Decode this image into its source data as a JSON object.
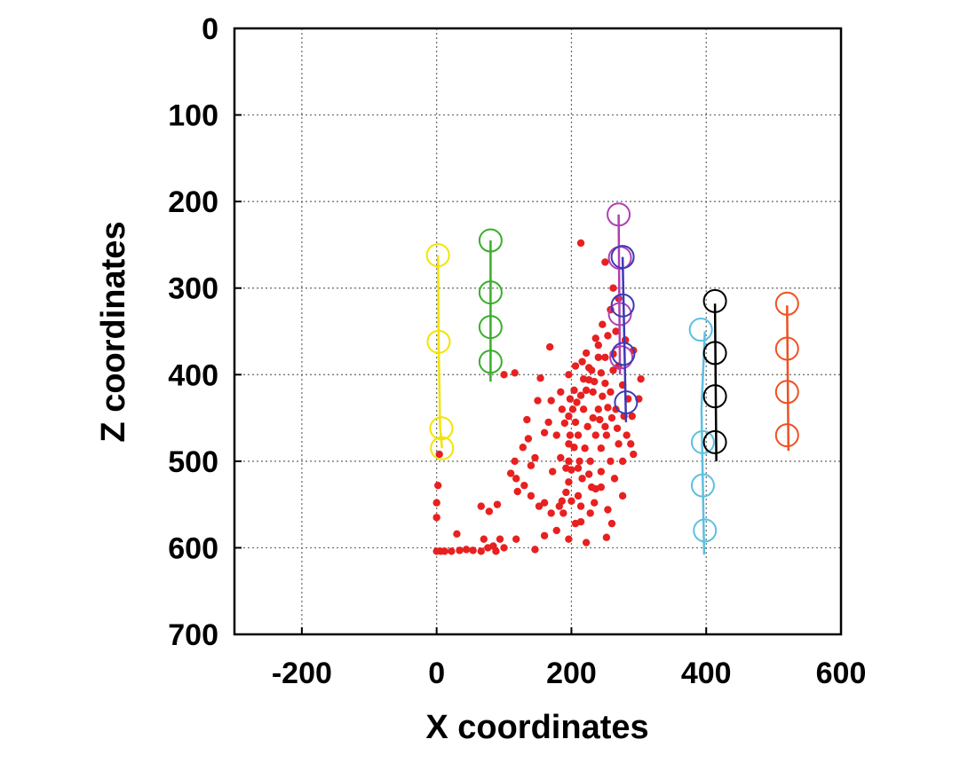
{
  "chart_data": {
    "type": "scatter",
    "xlabel": "X coordinates",
    "ylabel": "Z coordinates",
    "xlim": [
      -300,
      600
    ],
    "ylim": [
      0,
      700
    ],
    "y_inverted": true,
    "grid": true,
    "x_ticks": [
      -200,
      0,
      200,
      400,
      600
    ],
    "y_ticks": [
      0,
      100,
      200,
      300,
      400,
      500,
      600,
      700
    ],
    "x_tick_labels": [
      "-200",
      "0",
      "200",
      "400",
      "600"
    ],
    "y_tick_labels": [
      "0",
      "100",
      "200",
      "300",
      "400",
      "500",
      "600",
      "700"
    ],
    "wells": [
      {
        "color": "#f2e400",
        "trace": [
          [
            2,
            262
          ],
          [
            3,
            362
          ],
          [
            5,
            460
          ],
          [
            8,
            485
          ]
        ],
        "receivers": [
          [
            2,
            262
          ],
          [
            3,
            362
          ],
          [
            7,
            462
          ],
          [
            8,
            485
          ]
        ]
      },
      {
        "color": "#3aae2a",
        "trace": [
          [
            80,
            245
          ],
          [
            80,
            408
          ]
        ],
        "receivers": [
          [
            80,
            245
          ],
          [
            80,
            305
          ],
          [
            80,
            345
          ],
          [
            80,
            385
          ]
        ]
      },
      {
        "color": "#b040b0",
        "trace": [
          [
            270,
            215
          ],
          [
            272,
            400
          ]
        ],
        "receivers": [
          [
            270,
            215
          ],
          [
            272,
            265
          ],
          [
            272,
            330
          ],
          [
            274,
            380
          ]
        ]
      },
      {
        "color": "#3a3ab8",
        "trace": [
          [
            276,
            264
          ],
          [
            281,
            455
          ]
        ],
        "receivers": [
          [
            276,
            264
          ],
          [
            276,
            320
          ],
          [
            277,
            376
          ],
          [
            281,
            432
          ]
        ]
      },
      {
        "color": "#5cc0e0",
        "trace": [
          [
            398,
            350
          ],
          [
            393,
            440
          ],
          [
            397,
            608
          ]
        ],
        "receivers": [
          [
            392,
            348
          ],
          [
            395,
            478
          ],
          [
            395,
            528
          ],
          [
            398,
            580
          ]
        ]
      },
      {
        "color": "#000000",
        "trace": [
          [
            413,
            318
          ],
          [
            415,
            500
          ]
        ],
        "receivers": [
          [
            413,
            315
          ],
          [
            413,
            375
          ],
          [
            413,
            425
          ],
          [
            413,
            478
          ]
        ]
      },
      {
        "color": "#f05020",
        "trace": [
          [
            520,
            320
          ],
          [
            522,
            488
          ]
        ],
        "receivers": [
          [
            520,
            318
          ],
          [
            520,
            370
          ],
          [
            520,
            420
          ],
          [
            520,
            470
          ]
        ]
      }
    ],
    "events": {
      "color": "#e82020",
      "points": [
        [
          214,
          248
        ],
        [
          250,
          270
        ],
        [
          262,
          300
        ],
        [
          270,
          312
        ],
        [
          258,
          325
        ],
        [
          246,
          342
        ],
        [
          236,
          358
        ],
        [
          254,
          355
        ],
        [
          266,
          350
        ],
        [
          280,
          360
        ],
        [
          292,
          372
        ],
        [
          303,
          405
        ],
        [
          300,
          428
        ],
        [
          290,
          448
        ],
        [
          278,
          448
        ],
        [
          262,
          376
        ],
        [
          270,
          390
        ],
        [
          240,
          380
        ],
        [
          230,
          395
        ],
        [
          226,
          406
        ],
        [
          222,
          418
        ],
        [
          214,
          424
        ],
        [
          208,
          432
        ],
        [
          202,
          440
        ],
        [
          196,
          448
        ],
        [
          190,
          456
        ],
        [
          198,
          470
        ],
        [
          204,
          484
        ],
        [
          196,
          500
        ],
        [
          200,
          510
        ],
        [
          196,
          524
        ],
        [
          192,
          536
        ],
        [
          186,
          546
        ],
        [
          182,
          552
        ],
        [
          170,
          560
        ],
        [
          160,
          548
        ],
        [
          152,
          552
        ],
        [
          140,
          540
        ],
        [
          130,
          528
        ],
        [
          118,
          520
        ],
        [
          110,
          514
        ],
        [
          116,
          500
        ],
        [
          128,
          484
        ],
        [
          136,
          474
        ],
        [
          160,
          467
        ],
        [
          166,
          455
        ],
        [
          170,
          430
        ],
        [
          184,
          420
        ],
        [
          196,
          400
        ],
        [
          206,
          390
        ],
        [
          216,
          385
        ],
        [
          222,
          375
        ],
        [
          168,
          368
        ],
        [
          154,
          404
        ],
        [
          116,
          398
        ],
        [
          100,
          400
        ],
        [
          150,
          430
        ],
        [
          140,
          505
        ],
        [
          120,
          535
        ],
        [
          90,
          550
        ],
        [
          66,
          552
        ],
        [
          78,
          558
        ],
        [
          70,
          590
        ],
        [
          94,
          590
        ],
        [
          100,
          600
        ],
        [
          88,
          604
        ],
        [
          84,
          598
        ],
        [
          76,
          600
        ],
        [
          66,
          604
        ],
        [
          54,
          603
        ],
        [
          44,
          602
        ],
        [
          34,
          603
        ],
        [
          22,
          604
        ],
        [
          12,
          604
        ],
        [
          6,
          604
        ],
        [
          0,
          604
        ],
        [
          0,
          565
        ],
        [
          0,
          548
        ],
        [
          2,
          528
        ],
        [
          4,
          492
        ],
        [
          30,
          584
        ],
        [
          146,
          602
        ],
        [
          118,
          590
        ],
        [
          178,
          580
        ],
        [
          188,
          560
        ],
        [
          206,
          572
        ],
        [
          214,
          570
        ],
        [
          196,
          590
        ],
        [
          222,
          594
        ],
        [
          252,
          588
        ],
        [
          260,
          572
        ],
        [
          276,
          540
        ],
        [
          254,
          556
        ],
        [
          234,
          548
        ],
        [
          292,
          492
        ],
        [
          230,
          530
        ],
        [
          216,
          520
        ],
        [
          244,
          512
        ],
        [
          258,
          500
        ],
        [
          270,
          480
        ],
        [
          282,
          470
        ],
        [
          266,
          440
        ],
        [
          258,
          420
        ],
        [
          250,
          410
        ],
        [
          210,
          470
        ],
        [
          224,
          460
        ],
        [
          232,
          450
        ],
        [
          240,
          440
        ],
        [
          236,
          470
        ],
        [
          220,
          485
        ],
        [
          212,
          500
        ],
        [
          228,
          500
        ],
        [
          244,
          485
        ],
        [
          250,
          460
        ],
        [
          260,
          450
        ],
        [
          218,
          440
        ],
        [
          246,
          425
        ],
        [
          232,
          420
        ],
        [
          218,
          405
        ],
        [
          204,
          418
        ],
        [
          196,
          480
        ],
        [
          206,
          455
        ],
        [
          226,
          392
        ],
        [
          244,
          398
        ],
        [
          254,
          438
        ],
        [
          252,
          470
        ],
        [
          226,
          515
        ],
        [
          210,
          540
        ],
        [
          228,
          560
        ],
        [
          160,
          586
        ],
        [
          172,
          512
        ],
        [
          146,
          496
        ],
        [
          134,
          452
        ],
        [
          184,
          496
        ],
        [
          178,
          470
        ],
        [
          186,
          440
        ],
        [
          240,
          366
        ],
        [
          250,
          380
        ],
        [
          262,
          395
        ],
        [
          276,
          412
        ],
        [
          284,
          428
        ],
        [
          268,
          462
        ],
        [
          242,
          452
        ],
        [
          234,
          408
        ],
        [
          198,
          428
        ],
        [
          210,
          508
        ],
        [
          192,
          508
        ],
        [
          200,
          546
        ],
        [
          214,
          552
        ],
        [
          236,
          532
        ],
        [
          244,
          530
        ],
        [
          264,
          520
        ],
        [
          276,
          500
        ],
        [
          288,
          480
        ]
      ]
    }
  }
}
